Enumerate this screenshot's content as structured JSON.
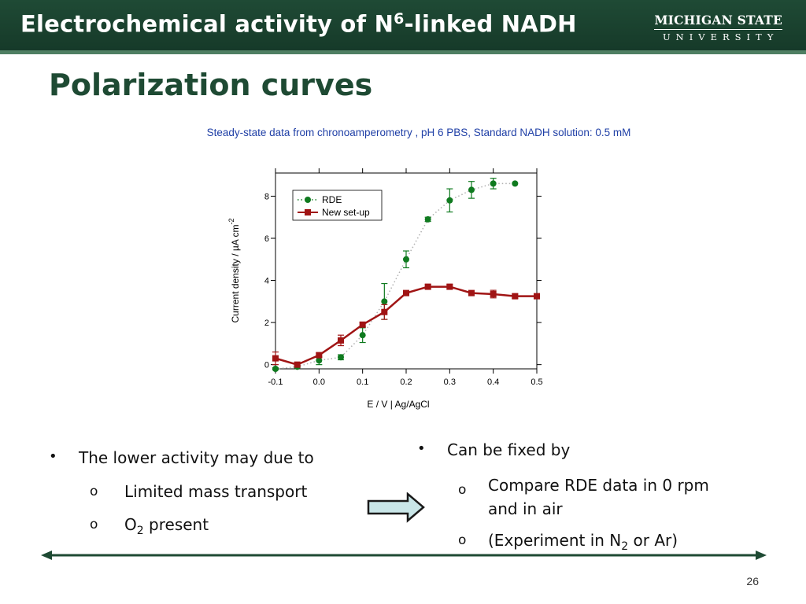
{
  "header": {
    "title_part1": "Electrochemical activity of N",
    "title_sup": "6",
    "title_part2": "-linked NADH",
    "logo_line1": "MICHIGAN STATE",
    "logo_line2": "UNIVERSITY"
  },
  "slide_title": "Polarization curves",
  "subtitle": "Steady-state data from chronoamperometry , pH 6 PBS, Standard NADH solution: 0.5 mM",
  "chart_data": {
    "type": "line",
    "xlabel": "E / V | Ag/AgCl",
    "ylabel_main": "Current density / µA cm",
    "ylabel_sup": "-2",
    "xlim": [
      -0.1,
      0.5
    ],
    "ylim": [
      -0.2,
      9.1
    ],
    "x_ticks": [
      "-0.1",
      "0.0",
      "0.1",
      "0.2",
      "0.3",
      "0.4",
      "0.5"
    ],
    "y_ticks": [
      "0",
      "2",
      "4",
      "6",
      "8"
    ],
    "grid": false,
    "legend": "top-left",
    "series": [
      {
        "name": "RDE",
        "marker": "circle",
        "color": "#0f7a1f",
        "line": "dotted",
        "x": [
          -0.1,
          -0.05,
          0.0,
          0.05,
          0.1,
          0.15,
          0.2,
          0.25,
          0.3,
          0.35,
          0.4,
          0.45
        ],
        "y": [
          -0.2,
          -0.1,
          0.2,
          0.35,
          1.4,
          3.0,
          5.0,
          6.9,
          7.8,
          8.3,
          8.6,
          8.6
        ],
        "err": [
          0.05,
          0.05,
          0.2,
          0.12,
          0.35,
          0.85,
          0.4,
          0.1,
          0.55,
          0.4,
          0.25,
          0.0
        ]
      },
      {
        "name": "New set-up",
        "marker": "square",
        "color": "#a01414",
        "line": "solid",
        "x": [
          -0.1,
          -0.05,
          0.0,
          0.05,
          0.1,
          0.15,
          0.2,
          0.25,
          0.3,
          0.35,
          0.4,
          0.45,
          0.5
        ],
        "y": [
          0.3,
          0.0,
          0.45,
          1.15,
          1.9,
          2.5,
          3.4,
          3.7,
          3.7,
          3.4,
          3.35,
          3.25,
          3.25
        ],
        "err": [
          0.3,
          0.05,
          0.1,
          0.25,
          0.1,
          0.35,
          0.1,
          0.1,
          0.1,
          0.1,
          0.18,
          0.1,
          0.1
        ]
      }
    ]
  },
  "bullets_left": {
    "item1": "The lower activity may due to",
    "sub1": "Limited mass transport",
    "sub2_part1": "O",
    "sub2_sub": "2",
    "sub2_part2": " present"
  },
  "bullets_right": {
    "item1": "Can be fixed by",
    "sub1_line1": "Compare RDE data in 0 rpm",
    "sub1_line2": "and in air",
    "sub2_part1": "(Experiment in N",
    "sub2_sub": "2",
    "sub2_part2": " or Ar)"
  },
  "markers": {
    "bullet": "•",
    "sub_bullet": "o"
  },
  "page_number": "26",
  "colors": {
    "header_bg": "#1f4a35",
    "title_green": "#1e4a33",
    "subtitle_blue": "#1f3fa6",
    "arrow_fill": "#c9e6e8",
    "rde": "#0f7a1f",
    "new_setup": "#a01414"
  }
}
